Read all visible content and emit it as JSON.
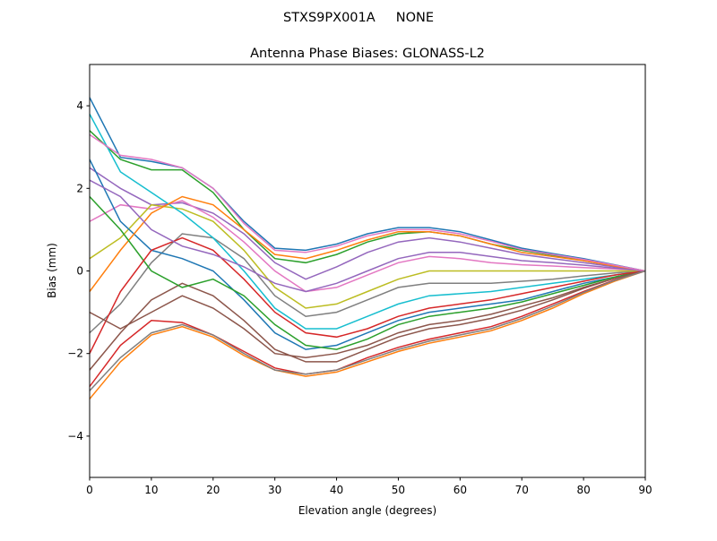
{
  "suptitle": "STXS9PX001A     NONE",
  "chart_data": {
    "type": "line",
    "title": "Antenna Phase Biases: GLONASS-L2",
    "xlabel": "Elevation angle (degrees)",
    "ylabel": "Bias (mm)",
    "xlim": [
      0,
      90
    ],
    "ylim": [
      -5,
      5
    ],
    "xticks": [
      0,
      10,
      20,
      30,
      40,
      50,
      60,
      70,
      80,
      90
    ],
    "yticks": [
      -4,
      -2,
      0,
      2,
      4
    ],
    "ytick_labels": [
      "−4",
      "−2",
      "0",
      "2",
      "4"
    ],
    "grid": false,
    "x": [
      0,
      5,
      10,
      15,
      20,
      25,
      30,
      35,
      40,
      45,
      50,
      55,
      60,
      65,
      70,
      75,
      80,
      85,
      90
    ],
    "colors": [
      "#1f77b4",
      "#ff7f0e",
      "#2ca02c",
      "#d62728",
      "#9467bd",
      "#8c564b",
      "#e377c2",
      "#7f7f7f",
      "#bcbd22",
      "#17becf"
    ],
    "series": [
      {
        "values": [
          4.2,
          2.75,
          2.65,
          2.5,
          2.0,
          1.2,
          0.55,
          0.5,
          0.65,
          0.9,
          1.05,
          1.05,
          0.95,
          0.75,
          0.55,
          0.42,
          0.3,
          0.15,
          0
        ]
      },
      {
        "values": [
          -3.1,
          -2.2,
          -1.55,
          -1.35,
          -1.6,
          -2.05,
          -2.4,
          -2.55,
          -2.45,
          -2.2,
          -1.95,
          -1.75,
          -1.6,
          -1.45,
          -1.2,
          -0.9,
          -0.55,
          -0.25,
          0
        ]
      },
      {
        "values": [
          3.4,
          2.7,
          2.45,
          2.45,
          1.9,
          1.0,
          0.3,
          0.2,
          0.4,
          0.7,
          0.9,
          0.95,
          0.85,
          0.65,
          0.5,
          0.38,
          0.25,
          0.12,
          0
        ]
      },
      {
        "values": [
          -2.8,
          -1.8,
          -1.2,
          -1.25,
          -1.55,
          -1.95,
          -2.35,
          -2.5,
          -2.4,
          -2.1,
          -1.85,
          -1.65,
          -1.5,
          -1.35,
          -1.1,
          -0.8,
          -0.5,
          -0.22,
          0
        ]
      },
      {
        "values": [
          2.5,
          2.0,
          1.6,
          1.65,
          1.4,
          0.9,
          0.2,
          -0.2,
          0.1,
          0.45,
          0.7,
          0.8,
          0.7,
          0.55,
          0.4,
          0.3,
          0.2,
          0.1,
          0
        ]
      },
      {
        "values": [
          -2.4,
          -1.5,
          -0.7,
          -0.3,
          -0.6,
          -1.2,
          -1.9,
          -2.2,
          -2.2,
          -1.9,
          -1.6,
          -1.4,
          -1.3,
          -1.15,
          -0.95,
          -0.7,
          -0.42,
          -0.18,
          0
        ]
      },
      {
        "values": [
          1.2,
          1.6,
          1.5,
          1.7,
          1.3,
          0.7,
          0.0,
          -0.5,
          -0.4,
          -0.1,
          0.2,
          0.35,
          0.3,
          0.2,
          0.15,
          0.12,
          0.08,
          0.05,
          0
        ]
      },
      {
        "values": [
          -1.5,
          -0.8,
          0.2,
          0.9,
          0.8,
          0.3,
          -0.6,
          -1.1,
          -1.0,
          -0.7,
          -0.4,
          -0.3,
          -0.3,
          -0.3,
          -0.25,
          -0.2,
          -0.12,
          -0.05,
          0
        ]
      },
      {
        "values": [
          0.3,
          0.8,
          1.6,
          1.5,
          1.2,
          0.5,
          -0.4,
          -0.9,
          -0.8,
          -0.5,
          -0.2,
          0.0,
          0.0,
          0.0,
          0.0,
          0.0,
          0.0,
          0.0,
          0
        ]
      },
      {
        "values": [
          3.8,
          2.4,
          1.9,
          1.4,
          0.8,
          0.0,
          -0.9,
          -1.4,
          -1.4,
          -1.1,
          -0.8,
          -0.6,
          -0.55,
          -0.5,
          -0.4,
          -0.3,
          -0.2,
          -0.1,
          0
        ]
      },
      {
        "values": [
          2.7,
          1.2,
          0.5,
          0.3,
          0.0,
          -0.7,
          -1.5,
          -1.9,
          -1.8,
          -1.5,
          -1.2,
          -1.0,
          -0.9,
          -0.8,
          -0.7,
          -0.5,
          -0.3,
          -0.15,
          0
        ]
      },
      {
        "values": [
          -0.5,
          0.5,
          1.4,
          1.8,
          1.6,
          1.0,
          0.4,
          0.3,
          0.5,
          0.75,
          0.95,
          0.95,
          0.85,
          0.65,
          0.45,
          0.35,
          0.25,
          0.12,
          0
        ]
      },
      {
        "values": [
          1.8,
          1.0,
          0.0,
          -0.4,
          -0.2,
          -0.6,
          -1.3,
          -1.8,
          -1.9,
          -1.65,
          -1.3,
          -1.1,
          -1.0,
          -0.9,
          -0.75,
          -0.55,
          -0.35,
          -0.15,
          0
        ]
      },
      {
        "values": [
          -2.0,
          -0.5,
          0.5,
          0.8,
          0.5,
          -0.2,
          -1.0,
          -1.5,
          -1.6,
          -1.4,
          -1.1,
          -0.9,
          -0.8,
          -0.7,
          -0.55,
          -0.4,
          -0.25,
          -0.1,
          0
        ]
      },
      {
        "values": [
          2.2,
          1.8,
          1.0,
          0.6,
          0.4,
          0.1,
          -0.3,
          -0.5,
          -0.3,
          0.0,
          0.3,
          0.45,
          0.45,
          0.35,
          0.25,
          0.2,
          0.14,
          0.07,
          0
        ]
      },
      {
        "values": [
          -1.0,
          -1.4,
          -1.0,
          -0.6,
          -0.9,
          -1.4,
          -2.0,
          -2.1,
          -2.0,
          -1.8,
          -1.5,
          -1.3,
          -1.2,
          -1.05,
          -0.85,
          -0.65,
          -0.4,
          -0.18,
          0
        ]
      },
      {
        "values": [
          3.3,
          2.8,
          2.7,
          2.5,
          2.0,
          1.15,
          0.5,
          0.45,
          0.6,
          0.85,
          1.0,
          1.0,
          0.9,
          0.72,
          0.52,
          0.4,
          0.28,
          0.14,
          0
        ]
      },
      {
        "values": [
          -2.9,
          -2.1,
          -1.5,
          -1.3,
          -1.55,
          -2.0,
          -2.4,
          -2.5,
          -2.4,
          -2.15,
          -1.9,
          -1.7,
          -1.55,
          -1.4,
          -1.15,
          -0.85,
          -0.52,
          -0.23,
          0
        ]
      }
    ]
  }
}
